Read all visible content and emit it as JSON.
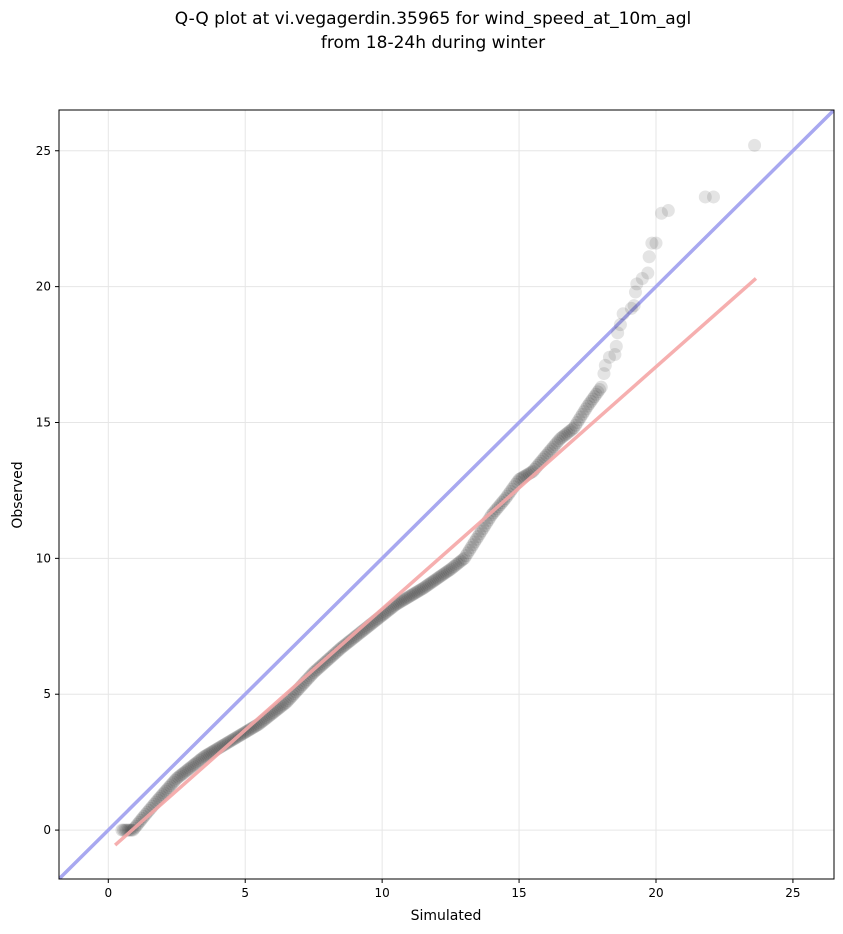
{
  "chart_data": {
    "type": "scatter",
    "title_lines": [
      "Q-Q plot at vi.vegagerdin.35965 for wind_speed_at_10m_agl",
      "from 18-24h during winter"
    ],
    "xlabel": "Simulated",
    "ylabel": "Observed",
    "xlim": [
      -1.8,
      26.5
    ],
    "ylim": [
      -1.8,
      26.5
    ],
    "xticks": [
      0,
      5,
      10,
      15,
      20,
      25
    ],
    "yticks": [
      0,
      5,
      10,
      15,
      20,
      25
    ],
    "xtick_labels": [
      "0",
      "5",
      "10",
      "15",
      "20",
      "25"
    ],
    "ytick_labels": [
      "0",
      "5",
      "10",
      "15",
      "20",
      "25"
    ],
    "grid": true,
    "identity_line": {
      "color": "#a8a8f0"
    },
    "fit_line": {
      "color": "#f5a6a6",
      "x": [
        0.25,
        23.65
      ],
      "y": [
        -0.55,
        20.3
      ]
    },
    "point_color": "#222222",
    "curve_knots": [
      [
        0.5,
        0.0
      ],
      [
        0.9,
        0.0
      ],
      [
        1.3,
        0.5
      ],
      [
        1.8,
        1.1
      ],
      [
        2.5,
        1.9
      ],
      [
        3.5,
        2.7
      ],
      [
        4.5,
        3.3
      ],
      [
        5.5,
        3.9
      ],
      [
        6.5,
        4.7
      ],
      [
        7.5,
        5.8
      ],
      [
        8.5,
        6.7
      ],
      [
        9.5,
        7.5
      ],
      [
        10.5,
        8.3
      ],
      [
        11.5,
        8.9
      ],
      [
        12.5,
        9.6
      ],
      [
        13.0,
        10.0
      ],
      [
        13.5,
        10.8
      ],
      [
        14.0,
        11.6
      ],
      [
        14.5,
        12.2
      ],
      [
        15.0,
        12.9
      ],
      [
        15.5,
        13.2
      ],
      [
        16.0,
        13.8
      ],
      [
        16.5,
        14.4
      ],
      [
        17.0,
        14.8
      ],
      [
        17.5,
        15.6
      ],
      [
        18.0,
        16.3
      ]
    ],
    "tail_points": [
      [
        18.1,
        16.8
      ],
      [
        18.15,
        17.1
      ],
      [
        18.3,
        17.4
      ],
      [
        18.5,
        17.5
      ],
      [
        18.55,
        17.8
      ],
      [
        18.6,
        18.3
      ],
      [
        18.7,
        18.6
      ],
      [
        18.8,
        19.0
      ],
      [
        19.1,
        19.2
      ],
      [
        19.2,
        19.3
      ],
      [
        19.25,
        19.8
      ],
      [
        19.3,
        20.1
      ],
      [
        19.5,
        20.3
      ],
      [
        19.7,
        20.5
      ],
      [
        19.75,
        21.1
      ],
      [
        19.85,
        21.6
      ],
      [
        20.0,
        21.6
      ],
      [
        20.2,
        22.7
      ],
      [
        20.45,
        22.8
      ],
      [
        21.8,
        23.3
      ],
      [
        22.1,
        23.3
      ],
      [
        23.6,
        25.2
      ]
    ]
  }
}
